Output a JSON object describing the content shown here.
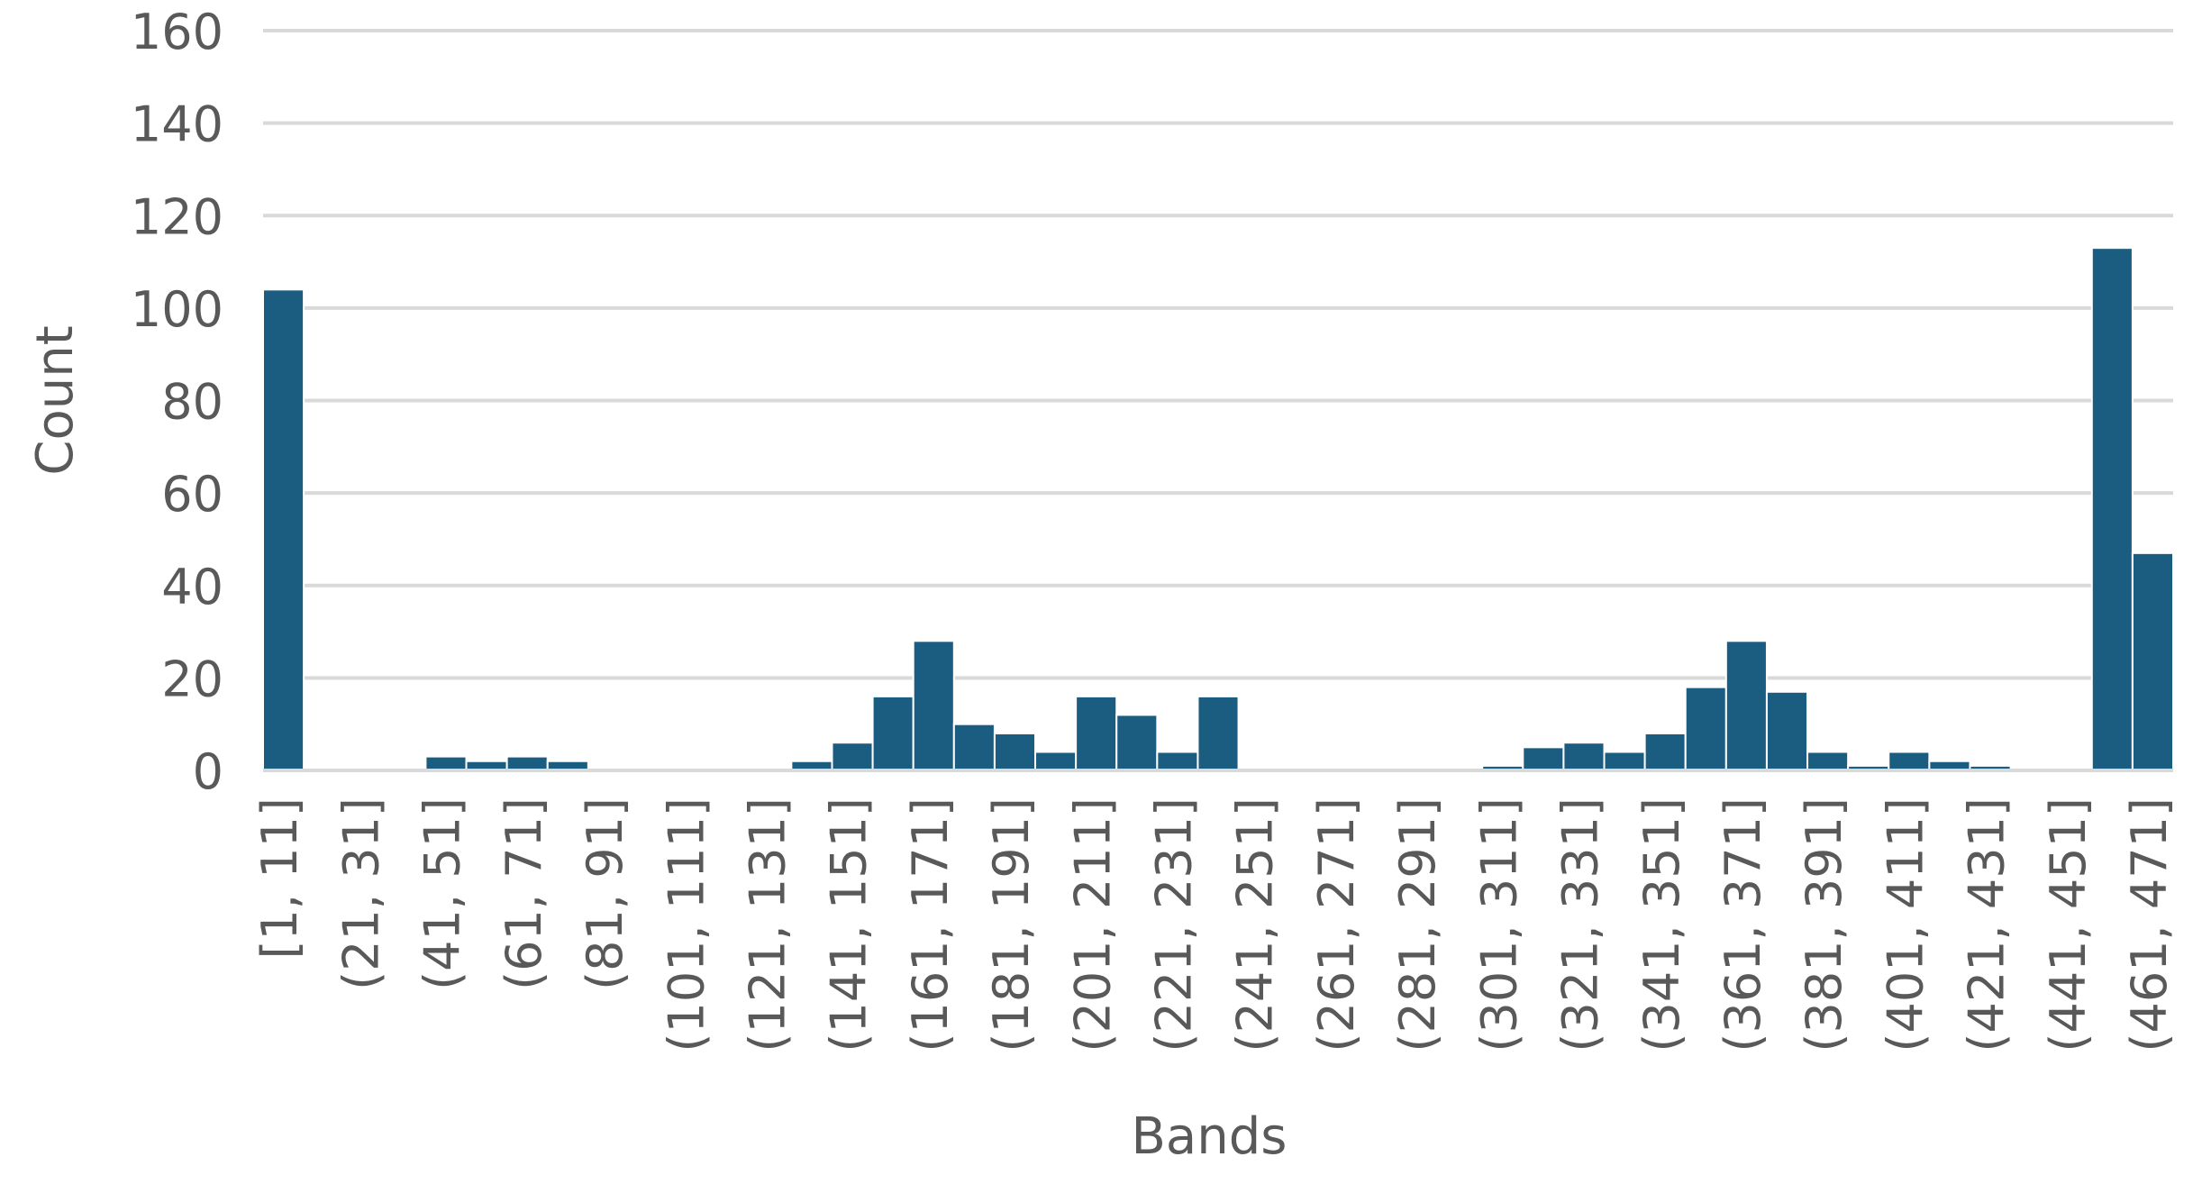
{
  "chart_data": {
    "type": "bar",
    "title": "",
    "xlabel": "Bands",
    "ylabel": "Count",
    "ylim": [
      0,
      160
    ],
    "yticks": [
      0,
      20,
      40,
      60,
      80,
      100,
      120,
      140,
      160
    ],
    "grid": true,
    "legend": "none",
    "bar_color": "#1b5c81",
    "grid_color": "#d9d9d9",
    "bar_edge_color": "#ffffff",
    "categories": [
      "[1, 11]",
      "(11, 21]",
      "(21, 31]",
      "(31, 41]",
      "(41, 51]",
      "(51, 61]",
      "(61, 71]",
      "(71, 81]",
      "(81, 91]",
      "(91, 101]",
      "(101, 111]",
      "(111, 121]",
      "(121, 131]",
      "(131, 141]",
      "(141, 151]",
      "(151, 161]",
      "(161, 171]",
      "(171, 181]",
      "(181, 191]",
      "(191, 201]",
      "(201, 211]",
      "(211, 221]",
      "(221, 231]",
      "(231, 241]",
      "(241, 251]",
      "(251, 261]",
      "(261, 271]",
      "(271, 281]",
      "(281, 291]",
      "(291, 301]",
      "(301, 311]",
      "(311, 321]",
      "(321, 331]",
      "(331, 341]",
      "(341, 351]",
      "(351, 361]",
      "(361, 371]",
      "(371, 381]",
      "(381, 391]",
      "(391, 401]",
      "(401, 411]",
      "(411, 421]",
      "(421, 431]",
      "(431, 441]",
      "(441, 451]",
      "(451, 461]",
      "(461, 471]"
    ],
    "shown_tick_labels": [
      "[1, 11]",
      "(21, 31]",
      "(41, 51]",
      "(61, 71]",
      "(81, 91]",
      "(101, 111]",
      "(121, 131]",
      "(141, 151]",
      "(161, 171]",
      "(181, 191]",
      "(201, 211]",
      "(221, 231]",
      "(241, 251]",
      "(261, 271]",
      "(281, 291]",
      "(301, 311]",
      "(321, 331]",
      "(341, 351]",
      "(361, 371]",
      "(381, 391]",
      "(401, 411]",
      "(421, 431]",
      "(441, 451]",
      "(461, 471]"
    ],
    "values": [
      104,
      0,
      0,
      0,
      3,
      2,
      3,
      2,
      0,
      0,
      0,
      0,
      0,
      2,
      6,
      16,
      28,
      10,
      8,
      4,
      16,
      12,
      4,
      16,
      0,
      0,
      0,
      0,
      0,
      0,
      1,
      5,
      6,
      4,
      8,
      18,
      28,
      17,
      4,
      1,
      4,
      2,
      1,
      0,
      0,
      113,
      47
    ]
  }
}
